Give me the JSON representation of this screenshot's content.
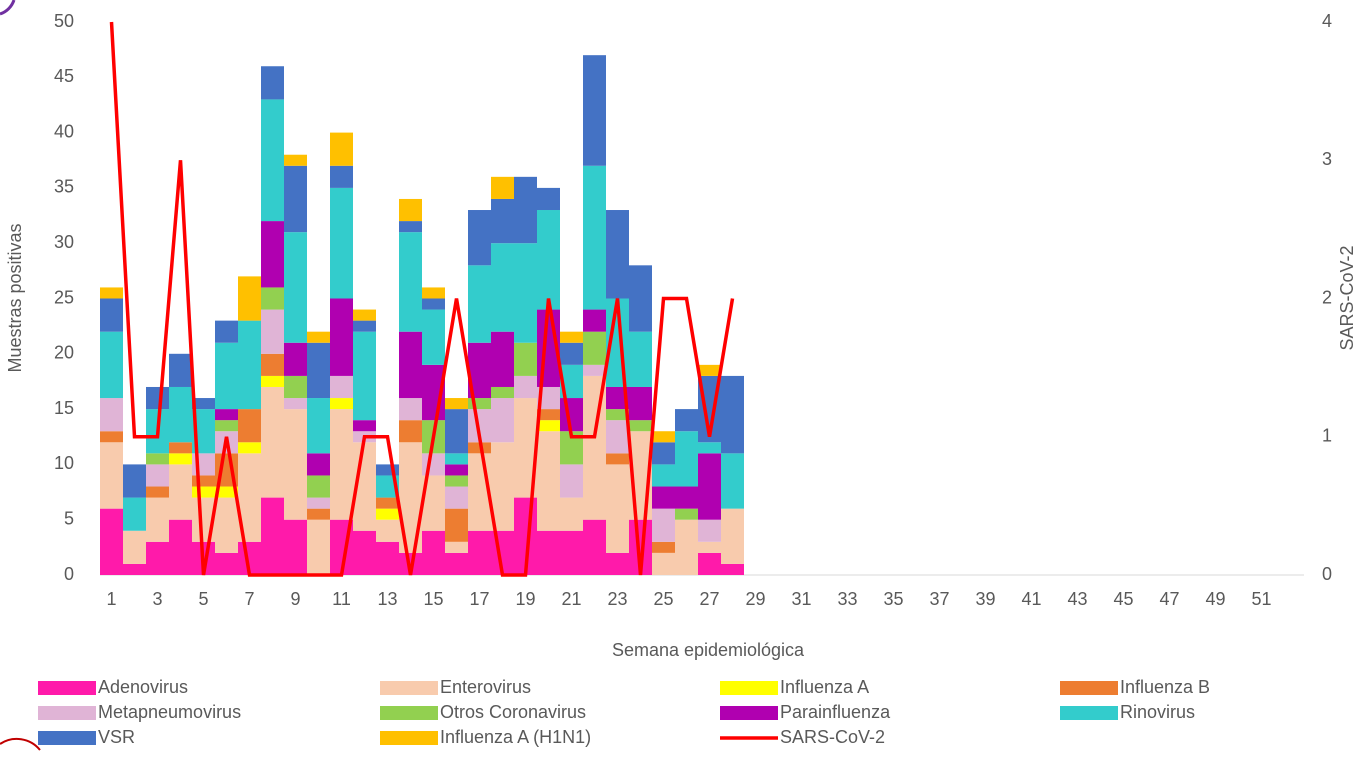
{
  "chart_data": {
    "type": "bar",
    "stacked": true,
    "xlabel": "Semana epidemiológica",
    "ylabel": "Muestras positivas",
    "y2label": "SARS-CoV-2",
    "categories": [
      1,
      null,
      3,
      null,
      5,
      null,
      7,
      null,
      9,
      null,
      11,
      null,
      13,
      null,
      15,
      null,
      17,
      null,
      19,
      null,
      21,
      null,
      23,
      null,
      25,
      null,
      27,
      null,
      29,
      null,
      31,
      null,
      33,
      null,
      35,
      null,
      37,
      null,
      39,
      null,
      41,
      null,
      43,
      null,
      45,
      null,
      47,
      null,
      49,
      null,
      51,
      null
    ],
    "ylim": [
      0,
      50
    ],
    "yticks": [
      0,
      5,
      10,
      15,
      20,
      25,
      30,
      35,
      40,
      45,
      50
    ],
    "y2lim": [
      0,
      4
    ],
    "y2ticks": [
      0,
      1,
      2,
      3,
      4
    ],
    "series": [
      {
        "name": "Adenovirus",
        "color": "#ff1aaa",
        "values": [
          6,
          1,
          3,
          5,
          3,
          2,
          3,
          7,
          5,
          0,
          5,
          4,
          3,
          2,
          4,
          2,
          4,
          4,
          7,
          4,
          4,
          5,
          2,
          5,
          0,
          0,
          2,
          1,
          null,
          null,
          null,
          null,
          null,
          null,
          null,
          null,
          null,
          null,
          null,
          null,
          null,
          null,
          null,
          null,
          null,
          null,
          null,
          null,
          null,
          null,
          null,
          null
        ]
      },
      {
        "name": "Enterovirus",
        "color": "#f8cbad",
        "values": [
          6,
          3,
          4,
          5,
          4,
          5,
          8,
          10,
          10,
          5,
          10,
          8,
          2,
          10,
          5,
          1,
          7,
          8,
          9,
          9,
          3,
          13,
          8,
          8,
          2,
          5,
          1,
          5,
          null,
          null,
          null,
          null,
          null,
          null,
          null,
          null,
          null,
          null,
          null,
          null,
          null,
          null,
          null,
          null,
          null,
          null,
          null,
          null,
          null,
          null,
          null,
          null
        ]
      },
      {
        "name": "Influenza A",
        "color": "#ffff00",
        "values": [
          0,
          0,
          0,
          1,
          1,
          1,
          1,
          1,
          0,
          0,
          1,
          0,
          1,
          0,
          0,
          0,
          0,
          0,
          0,
          1,
          0,
          0,
          0,
          0,
          0,
          0,
          0,
          0,
          null,
          null,
          null,
          null,
          null,
          null,
          null,
          null,
          null,
          null,
          null,
          null,
          null,
          null,
          null,
          null,
          null,
          null,
          null,
          null,
          null,
          null,
          null,
          null
        ]
      },
      {
        "name": "Influenza B",
        "color": "#ed7d31",
        "values": [
          1,
          0,
          1,
          1,
          1,
          3,
          3,
          2,
          0,
          1,
          0,
          0,
          1,
          2,
          0,
          3,
          1,
          0,
          0,
          1,
          0,
          0,
          1,
          0,
          1,
          0,
          0,
          0,
          null,
          null,
          null,
          null,
          null,
          null,
          null,
          null,
          null,
          null,
          null,
          null,
          null,
          null,
          null,
          null,
          null,
          null,
          null,
          null,
          null,
          null,
          null,
          null
        ]
      },
      {
        "name": "Metapneumovirus",
        "color": "#e0b4d6",
        "values": [
          3,
          0,
          2,
          0,
          2,
          2,
          0,
          4,
          1,
          1,
          2,
          1,
          0,
          2,
          2,
          2,
          3,
          4,
          2,
          2,
          3,
          1,
          3,
          0,
          3,
          0,
          2,
          0,
          null,
          null,
          null,
          null,
          null,
          null,
          null,
          null,
          null,
          null,
          null,
          null,
          null,
          null,
          null,
          null,
          null,
          null,
          null,
          null,
          null,
          null,
          null,
          null
        ]
      },
      {
        "name": "Otros Coronavirus",
        "color": "#92d050",
        "values": [
          0,
          0,
          1,
          0,
          0,
          1,
          0,
          2,
          2,
          2,
          0,
          0,
          0,
          0,
          3,
          1,
          1,
          1,
          3,
          0,
          3,
          3,
          1,
          1,
          0,
          1,
          0,
          0,
          null,
          null,
          null,
          null,
          null,
          null,
          null,
          null,
          null,
          null,
          null,
          null,
          null,
          null,
          null,
          null,
          null,
          null,
          null,
          null,
          null,
          null,
          null,
          null
        ]
      },
      {
        "name": "Parainfluenza",
        "color": "#b000b0",
        "values": [
          0,
          0,
          0,
          0,
          0,
          1,
          0,
          6,
          3,
          2,
          7,
          1,
          0,
          6,
          5,
          1,
          5,
          5,
          0,
          7,
          3,
          2,
          2,
          3,
          2,
          2,
          6,
          0,
          null,
          null,
          null,
          null,
          null,
          null,
          null,
          null,
          null,
          null,
          null,
          null,
          null,
          null,
          null,
          null,
          null,
          null,
          null,
          null,
          null,
          null,
          null,
          null
        ]
      },
      {
        "name": "Rinovirus",
        "color": "#33cccc",
        "values": [
          6,
          3,
          4,
          5,
          4,
          6,
          8,
          11,
          10,
          5,
          10,
          8,
          2,
          9,
          5,
          1,
          7,
          8,
          9,
          9,
          3,
          13,
          8,
          5,
          2,
          5,
          1,
          5,
          null,
          null,
          null,
          null,
          null,
          null,
          null,
          null,
          null,
          null,
          null,
          null,
          null,
          null,
          null,
          null,
          null,
          null,
          null,
          null,
          null,
          null,
          null,
          null
        ]
      },
      {
        "name": "VSR",
        "color": "#4472c4",
        "values": [
          3,
          3,
          2,
          3,
          1,
          2,
          0,
          3,
          6,
          5,
          2,
          1,
          1,
          1,
          1,
          4,
          5,
          4,
          6,
          2,
          2,
          10,
          8,
          6,
          2,
          2,
          6,
          7,
          null,
          null,
          null,
          null,
          null,
          null,
          null,
          null,
          null,
          null,
          null,
          null,
          null,
          null,
          null,
          null,
          null,
          null,
          null,
          null,
          null,
          null,
          null,
          null
        ]
      },
      {
        "name": "Influenza A (H1N1)",
        "color": "#ffc000",
        "values": [
          1,
          0,
          0,
          0,
          0,
          0,
          4,
          0,
          1,
          1,
          3,
          1,
          0,
          2,
          1,
          1,
          0,
          2,
          0,
          0,
          1,
          0,
          0,
          0,
          1,
          0,
          1,
          0,
          null,
          null,
          null,
          null,
          null,
          null,
          null,
          null,
          null,
          null,
          null,
          null,
          null,
          null,
          null,
          null,
          null,
          null,
          null,
          null,
          null,
          null,
          null,
          null
        ]
      },
      {
        "name": "SARS-CoV-2",
        "color": "#ff0000",
        "type": "line",
        "axis": "y2",
        "values": [
          4,
          1,
          1,
          3,
          0,
          1,
          0,
          0,
          0,
          0,
          0,
          1,
          1,
          0,
          1,
          2,
          1,
          0,
          0,
          2,
          1,
          1,
          2,
          0,
          2,
          2,
          1,
          2,
          null,
          null,
          null,
          null,
          null,
          null,
          null,
          null,
          null,
          null,
          null,
          null,
          null,
          null,
          null,
          null,
          null,
          null,
          null,
          null,
          null,
          null,
          null,
          null
        ]
      }
    ]
  }
}
